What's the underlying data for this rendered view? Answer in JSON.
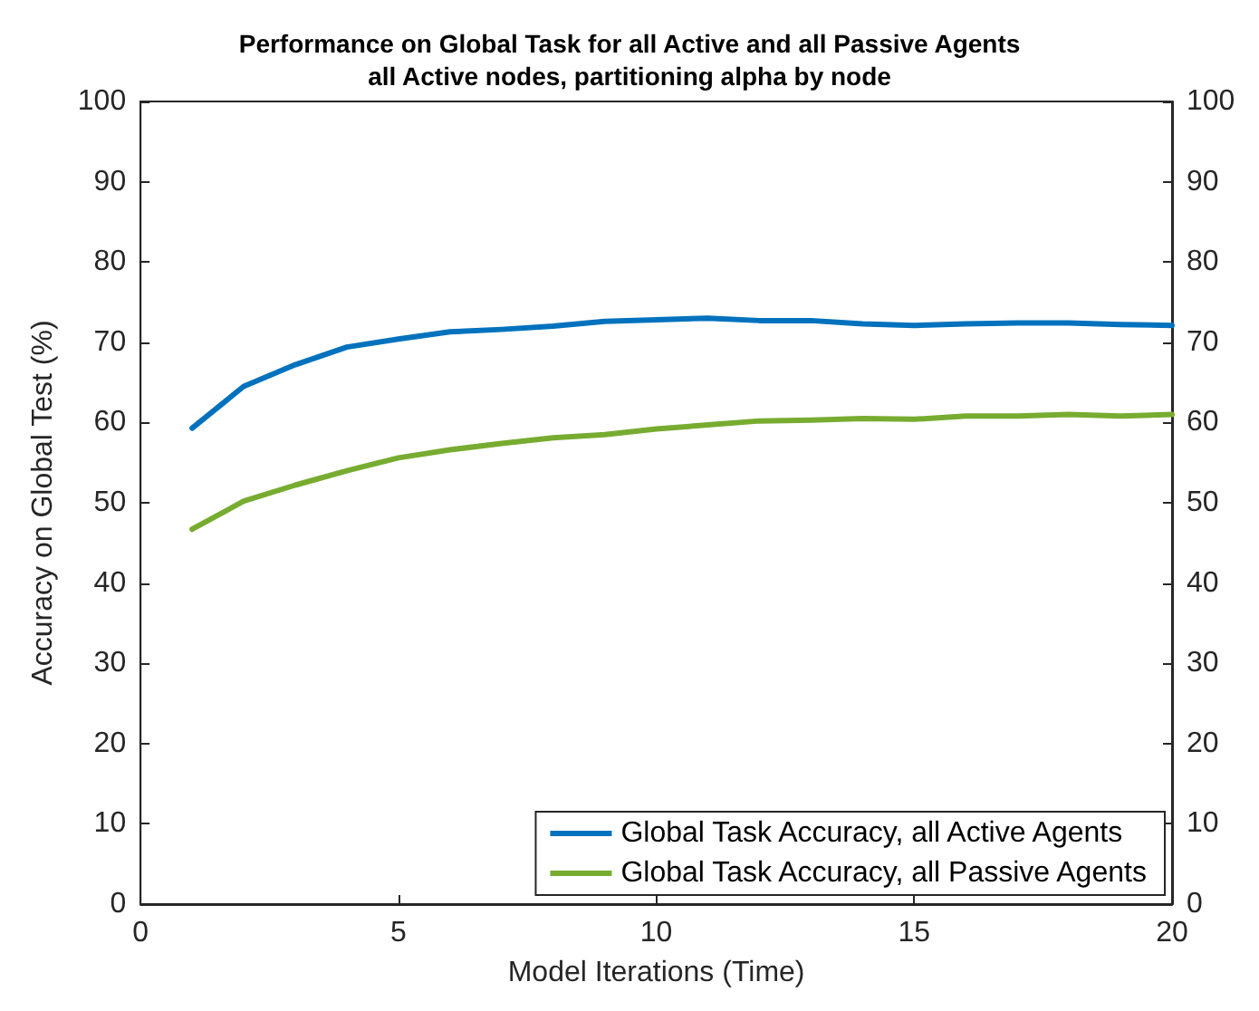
{
  "chart_data": {
    "type": "line",
    "title": "Performance on Global Task for all Active and all Passive Agents",
    "subtitle": "all Active nodes, partitioning alpha by node",
    "xlabel": "Model Iterations (Time)",
    "ylabel": "Accuracy on Global Test (%)",
    "x": [
      1,
      2,
      3,
      4,
      5,
      6,
      7,
      8,
      9,
      10,
      11,
      12,
      13,
      14,
      15,
      16,
      17,
      18,
      19,
      20
    ],
    "series": [
      {
        "name": "Global Task Accuracy, all Active Agents",
        "color": "#0072bd",
        "values": [
          59.3,
          64.5,
          67.2,
          69.4,
          70.4,
          71.3,
          71.6,
          72.0,
          72.6,
          72.8,
          73.0,
          72.7,
          72.7,
          72.3,
          72.1,
          72.3,
          72.4,
          72.4,
          72.2,
          72.1
        ]
      },
      {
        "name": "Global Task Accuracy, all Passive Agents",
        "color": "#77ac30",
        "values": [
          46.7,
          50.2,
          52.2,
          54.0,
          55.6,
          56.6,
          57.4,
          58.1,
          58.5,
          59.2,
          59.7,
          60.2,
          60.3,
          60.5,
          60.4,
          60.8,
          60.8,
          61.0,
          60.8,
          61.0
        ]
      }
    ],
    "xlim": [
      0,
      20
    ],
    "xticks": [
      0,
      5,
      10,
      15,
      20
    ],
    "ylim": [
      0,
      100
    ],
    "yticks": [
      0,
      10,
      20,
      30,
      40,
      50,
      60,
      70,
      80,
      90,
      100
    ],
    "y2lim": [
      0,
      100
    ],
    "y2ticks": [
      0,
      10,
      20,
      30,
      40,
      50,
      60,
      70,
      80,
      90,
      100
    ],
    "grid": false,
    "legend": "bottom right",
    "marker": "none",
    "line_style": "solid"
  }
}
